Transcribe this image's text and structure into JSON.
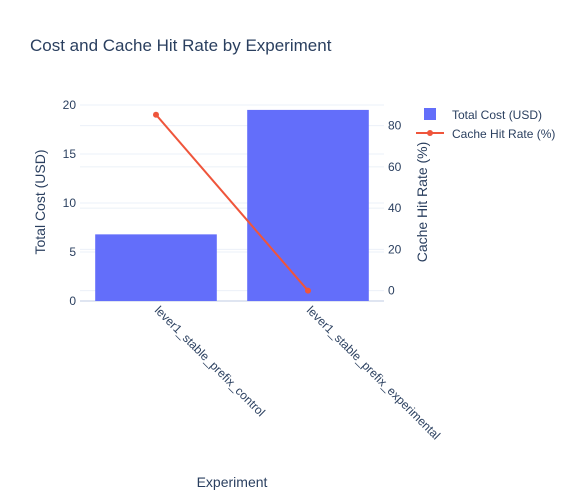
{
  "chart_data": {
    "type": "bar+line",
    "title": "Cost and Cache Hit Rate by Experiment",
    "xlabel": "Experiment",
    "categories": [
      "lever1_stable_prefix_control",
      "lever1_stable_prefix_experimental"
    ],
    "y_left": {
      "label": "Total Cost (USD)",
      "range": [
        0,
        20
      ],
      "ticks": [
        0,
        5,
        10,
        15,
        20
      ]
    },
    "y_right": {
      "label": "Cache Hit Rate (%)",
      "range": [
        -5,
        90
      ],
      "ticks": [
        0,
        20,
        40,
        60,
        80
      ]
    },
    "series": [
      {
        "name": "Total Cost (USD)",
        "kind": "bar",
        "axis": "left",
        "color": "#636efa",
        "values": [
          6.8,
          19.5
        ]
      },
      {
        "name": "Cache Hit Rate (%)",
        "kind": "line",
        "axis": "right",
        "color": "#ef553b",
        "values": [
          85.3,
          0
        ]
      }
    ],
    "grid": true,
    "legend_position": "top-right"
  }
}
